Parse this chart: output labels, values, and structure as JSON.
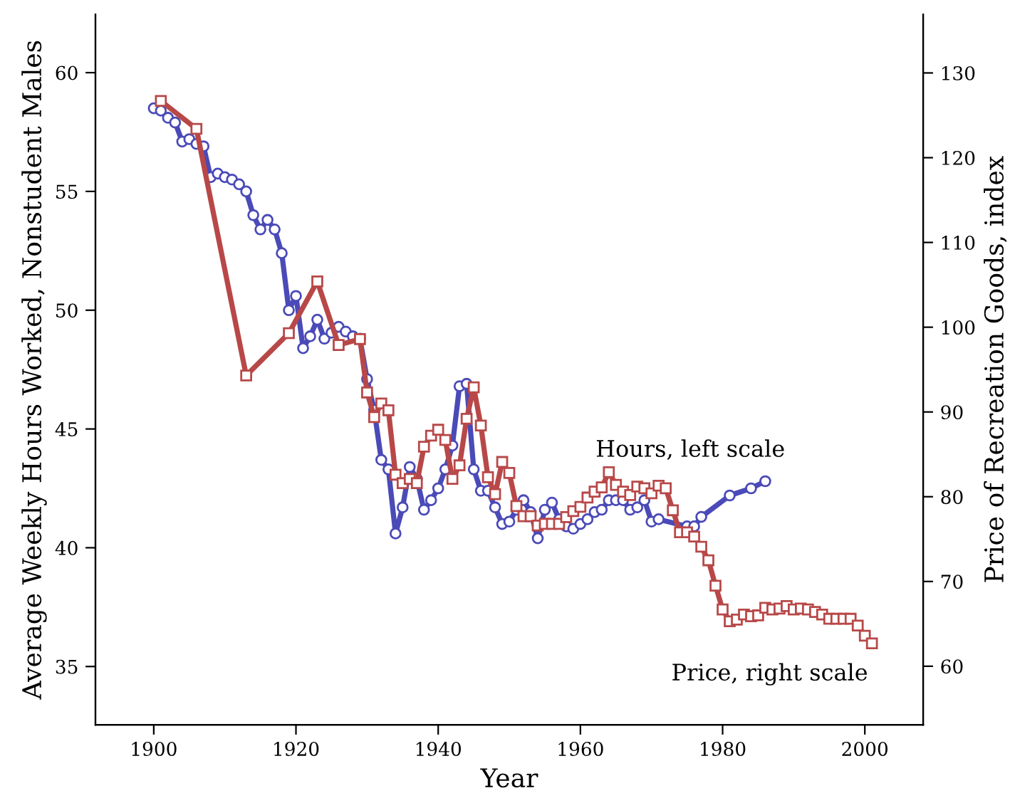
{
  "chart_data": {
    "type": "line",
    "xlabel": "Year",
    "ylabel": "Average Weekly Hours Worked, Nonstudent Males",
    "y2label": "Price of Recreation Goods, index",
    "xlim": [
      1891.8,
      2008.2
    ],
    "xticks": [
      1900,
      1920,
      1940,
      1960,
      1980,
      2000
    ],
    "ylim": [
      32.55,
      62.45
    ],
    "yticks": [
      35,
      40,
      45,
      50,
      55,
      60
    ],
    "y2lim": [
      53.1,
      136.9
    ],
    "y2ticks": [
      60,
      70,
      80,
      90,
      100,
      110,
      120,
      130
    ],
    "grid": false,
    "legend": false,
    "series": [
      {
        "name": "Hours, left scale",
        "color": "#4a4ab8",
        "marker": "circle",
        "line_style": "solid",
        "x": [
          1900,
          1901,
          1902,
          1903,
          1904,
          1905,
          1906,
          1907,
          1908,
          1909,
          1910,
          1911,
          1912,
          1913,
          1914,
          1915,
          1916,
          1917,
          1918,
          1919,
          1920,
          1921,
          1922,
          1923,
          1924,
          1925,
          1926,
          1927,
          1928,
          1929,
          1930,
          1931,
          1932,
          1933,
          1934,
          1935,
          1936,
          1937,
          1938,
          1939,
          1940,
          1941,
          1942,
          1943,
          1944,
          1945,
          1946,
          1947,
          1948,
          1949,
          1950,
          1951,
          1952,
          1953,
          1954,
          1955,
          1956,
          1957,
          1958,
          1959,
          1960,
          1961,
          1962,
          1963,
          1964,
          1965,
          1966,
          1967,
          1968,
          1969,
          1970,
          1971,
          1975,
          1976,
          1977,
          1981,
          1984,
          1986
        ],
        "values": [
          58.5,
          58.4,
          58.1,
          57.9,
          57.1,
          57.2,
          57.0,
          56.9,
          55.6,
          55.75,
          55.6,
          55.5,
          55.3,
          55.0,
          54.0,
          53.4,
          53.8,
          53.4,
          52.4,
          50.0,
          50.6,
          48.4,
          48.9,
          49.6,
          48.8,
          49.05,
          49.3,
          49.1,
          48.9,
          48.8,
          47.1,
          45.8,
          43.7,
          43.3,
          40.6,
          41.7,
          43.4,
          42.9,
          41.6,
          42.0,
          42.5,
          43.3,
          44.3,
          46.8,
          46.9,
          43.3,
          42.4,
          42.4,
          41.7,
          41.0,
          41.1,
          41.6,
          42.0,
          41.5,
          40.4,
          41.6,
          41.9,
          41.2,
          40.9,
          40.8,
          41.0,
          41.2,
          41.5,
          41.6,
          42.0,
          42.0,
          42.0,
          41.6,
          41.7,
          42.0,
          41.1,
          41.2,
          40.9,
          40.9,
          41.3,
          42.2,
          42.5,
          42.8
        ]
      },
      {
        "name": "Price, right scale",
        "color": "#b84848",
        "marker": "square",
        "line_style": "solid",
        "axis": "y2",
        "x": [
          1901,
          1906,
          1913,
          1919,
          1923,
          1926,
          1929,
          1930,
          1931,
          1932,
          1933,
          1934,
          1935,
          1936,
          1937,
          1938,
          1939,
          1940,
          1941,
          1942,
          1943,
          1944,
          1945,
          1946,
          1947,
          1948,
          1949,
          1950,
          1951,
          1952,
          1953,
          1954,
          1955,
          1956,
          1957,
          1958,
          1959,
          1960,
          1961,
          1962,
          1963,
          1964,
          1965,
          1966,
          1967,
          1968,
          1969,
          1970,
          1971,
          1972,
          1973,
          1974,
          1975,
          1976,
          1977,
          1978,
          1979,
          1980,
          1981,
          1982,
          1983,
          1984,
          1985,
          1986,
          1987,
          1988,
          1989,
          1990,
          1991,
          1992,
          1993,
          1994,
          1995,
          1996,
          1997,
          1998,
          1999,
          2000,
          2001
        ],
        "values": [
          126.7,
          123.4,
          94.3,
          99.3,
          105.4,
          97.9,
          98.6,
          92.3,
          89.4,
          91.0,
          90.2,
          82.6,
          81.6,
          82.1,
          81.6,
          85.9,
          87.2,
          87.9,
          86.7,
          82.1,
          83.7,
          89.2,
          92.9,
          88.4,
          82.3,
          80.3,
          84.1,
          82.8,
          78.9,
          77.7,
          77.7,
          76.6,
          76.8,
          76.8,
          76.8,
          77.6,
          78.3,
          78.8,
          79.9,
          80.6,
          81.1,
          82.9,
          81.4,
          80.6,
          80.2,
          81.2,
          81.0,
          80.4,
          81.3,
          81.0,
          78.4,
          75.8,
          75.8,
          75.3,
          74.1,
          72.5,
          69.5,
          66.7,
          65.3,
          65.5,
          66.1,
          65.9,
          66.0,
          66.9,
          66.7,
          66.8,
          67.1,
          66.7,
          66.8,
          66.7,
          66.4,
          66.1,
          65.6,
          65.6,
          65.6,
          65.6,
          64.8,
          63.6,
          62.7
        ]
      }
    ]
  }
}
